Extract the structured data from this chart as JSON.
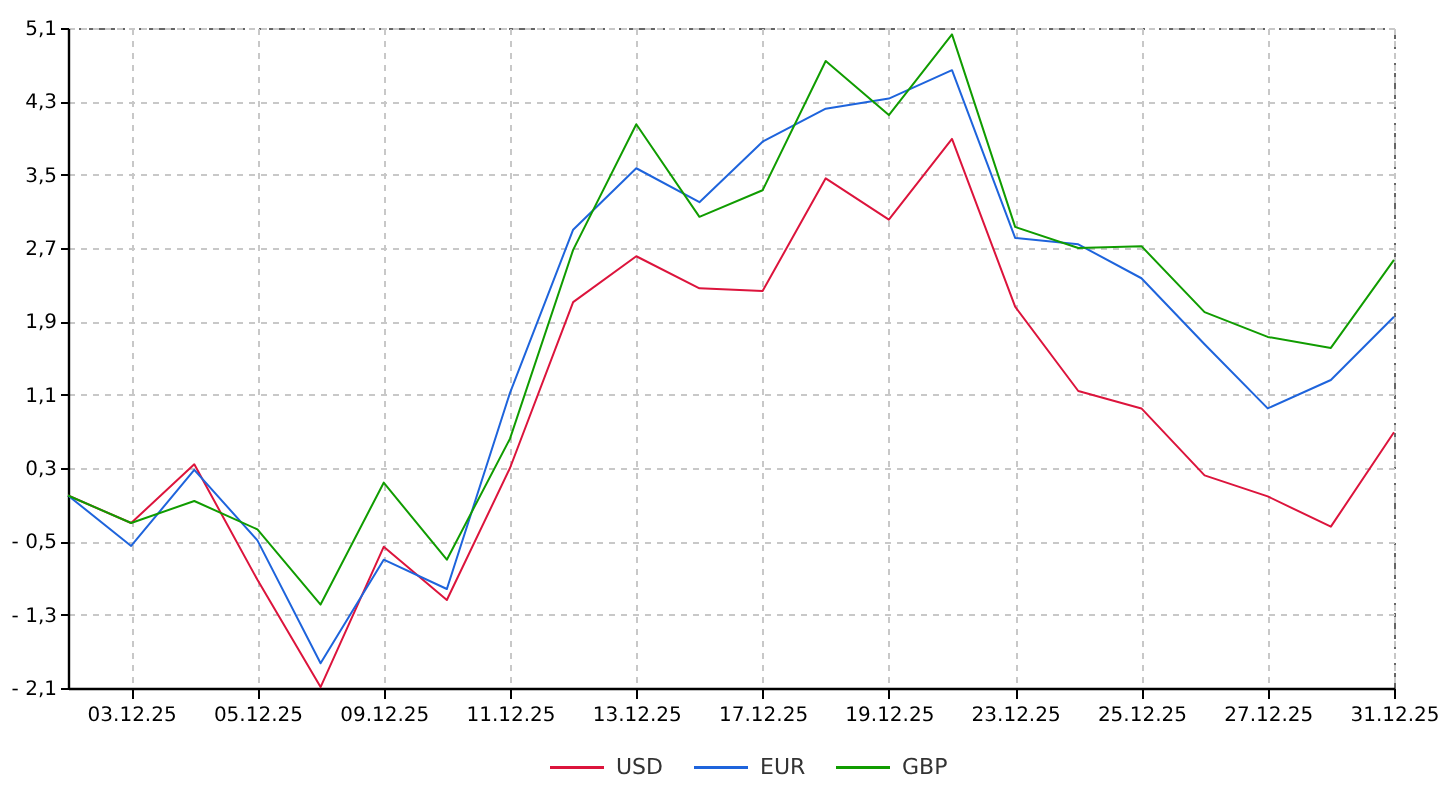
{
  "chart_data": {
    "type": "line",
    "categories": [
      null,
      "03.12.25",
      null,
      "05.12.25",
      null,
      "09.12.25",
      null,
      "11.12.25",
      null,
      "13.12.25",
      null,
      "17.12.25",
      null,
      "19.12.25",
      null,
      "23.12.25",
      null,
      "25.12.25",
      null,
      "27.12.25",
      null,
      "31.12.25"
    ],
    "series": [
      {
        "name": "USD",
        "color": "#dc143c",
        "values": [
          0.0,
          -0.3,
          0.34,
          -0.92,
          -2.09,
          -0.56,
          -1.14,
          0.3,
          2.11,
          2.61,
          2.26,
          2.23,
          3.46,
          3.01,
          3.89,
          2.06,
          1.14,
          0.95,
          0.22,
          -0.01,
          -0.34,
          0.69
        ]
      },
      {
        "name": "EUR",
        "color": "#1e64dc",
        "values": [
          0.0,
          -0.55,
          0.28,
          -0.49,
          -1.83,
          -0.7,
          -1.02,
          1.12,
          2.9,
          3.57,
          3.2,
          3.86,
          4.22,
          4.33,
          4.64,
          2.81,
          2.74,
          2.37,
          1.65,
          0.95,
          1.26,
          1.95
        ]
      },
      {
        "name": "GBP",
        "color": "#109c00",
        "values": [
          0.0,
          -0.3,
          -0.06,
          -0.37,
          -1.19,
          0.14,
          -0.7,
          0.62,
          2.68,
          4.05,
          3.04,
          3.33,
          4.74,
          4.15,
          5.03,
          2.93,
          2.7,
          2.72,
          2.0,
          1.73,
          1.61,
          2.57
        ]
      }
    ],
    "ylim": [
      -2.1,
      5.1
    ],
    "yticks": [
      {
        "value": -2.1,
        "label": "- 2,1"
      },
      {
        "value": -1.3,
        "label": "- 1,3"
      },
      {
        "value": -0.5,
        "label": "- 0,5"
      },
      {
        "value": 0.3,
        "label": "0,3"
      },
      {
        "value": 1.1,
        "label": "1,1"
      },
      {
        "value": 1.9,
        "label": "1,9"
      },
      {
        "value": 2.7,
        "label": "2,7"
      },
      {
        "value": 3.5,
        "label": "3,5"
      },
      {
        "value": 4.3,
        "label": "4,3"
      },
      {
        "value": 5.1,
        "label": "5,1"
      }
    ],
    "grid": true,
    "legend": "bottom"
  }
}
